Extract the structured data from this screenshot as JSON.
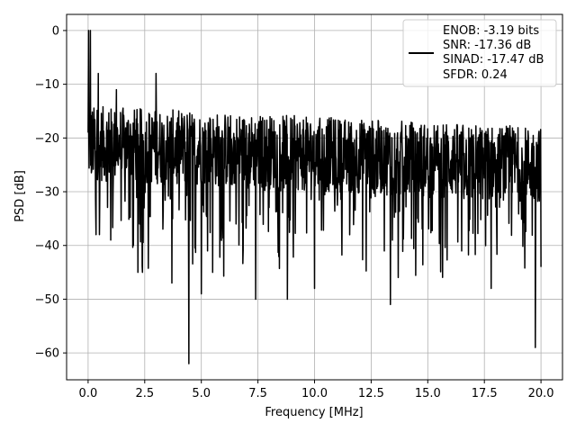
{
  "chart_data": {
    "type": "line",
    "title": "",
    "xlabel": "Frequency [MHz]",
    "ylabel": "PSD [dB]",
    "xlim": [
      -0.95,
      20.95
    ],
    "ylim": [
      -65,
      3
    ],
    "xticks": [
      0.0,
      2.5,
      5.0,
      7.5,
      10.0,
      12.5,
      15.0,
      17.5,
      20.0
    ],
    "xtick_labels": [
      "0.0",
      "2.5",
      "5.0",
      "7.5",
      "10.0",
      "12.5",
      "15.0",
      "17.5",
      "20.0"
    ],
    "yticks": [
      0,
      -10,
      -20,
      -30,
      -40,
      -50,
      -60
    ],
    "ytick_labels": [
      "0",
      "−10",
      "−20",
      "−30",
      "−40",
      "−50",
      "−60"
    ],
    "grid": true,
    "legend_position": "upper right",
    "series": [
      {
        "color": "#000000",
        "noise_floor_start_db": -21,
        "noise_floor_end_db": -25,
        "notable_points": [
          {
            "x": 0.0,
            "y": -19
          },
          {
            "x": 0.02,
            "y": 0
          },
          {
            "x": 0.1,
            "y": 0
          },
          {
            "x": 0.16,
            "y": -26
          },
          {
            "x": 0.35,
            "y": -38
          },
          {
            "x": 0.45,
            "y": -8
          },
          {
            "x": 0.5,
            "y": -38
          },
          {
            "x": 1.0,
            "y": -39
          },
          {
            "x": 1.25,
            "y": -11
          },
          {
            "x": 2.0,
            "y": -40
          },
          {
            "x": 2.2,
            "y": -45
          },
          {
            "x": 2.4,
            "y": -45
          },
          {
            "x": 3.0,
            "y": -8
          },
          {
            "x": 3.7,
            "y": -47
          },
          {
            "x": 4.45,
            "y": -62
          },
          {
            "x": 5.0,
            "y": -49
          },
          {
            "x": 5.5,
            "y": -45
          },
          {
            "x": 7.4,
            "y": -50
          },
          {
            "x": 8.8,
            "y": -50
          },
          {
            "x": 10.0,
            "y": -48
          },
          {
            "x": 13.35,
            "y": -51
          },
          {
            "x": 17.8,
            "y": -48
          },
          {
            "x": 19.75,
            "y": -59
          },
          {
            "x": 20.0,
            "y": -44
          }
        ]
      }
    ],
    "legend_entries": [
      "ENOB: -3.19 bits",
      "SNR: -17.36 dB",
      "SINAD: -17.47 dB",
      "SFDR: 0.24"
    ]
  }
}
